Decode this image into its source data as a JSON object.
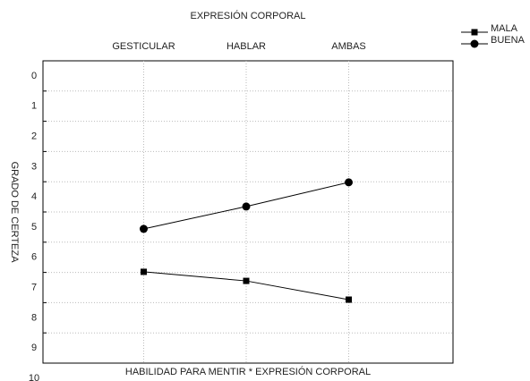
{
  "chart_data": {
    "type": "line",
    "title": "EXPRESIÓN CORPORAL",
    "xlabel": "HABILIDAD PARA MENTIR * EXPRESIÓN CORPORAL",
    "ylabel": "GRADO DE CERTEZA",
    "categories": [
      "GESTICULAR",
      "HABLAR",
      "AMBAS"
    ],
    "series": [
      {
        "name": "MALA",
        "color": "#000000",
        "marker": "square",
        "values": [
          6.98,
          7.28,
          7.9
        ]
      },
      {
        "name": "BUENA",
        "color": "#000000",
        "marker": "circle",
        "values": [
          5.56,
          4.82,
          4.02
        ]
      }
    ],
    "ylim": [
      0,
      10
    ],
    "y_inverted": true,
    "yticks": [
      0,
      1,
      2,
      3,
      4,
      5,
      6,
      7,
      8,
      9,
      10
    ],
    "grid": true,
    "legend": "top-right"
  }
}
